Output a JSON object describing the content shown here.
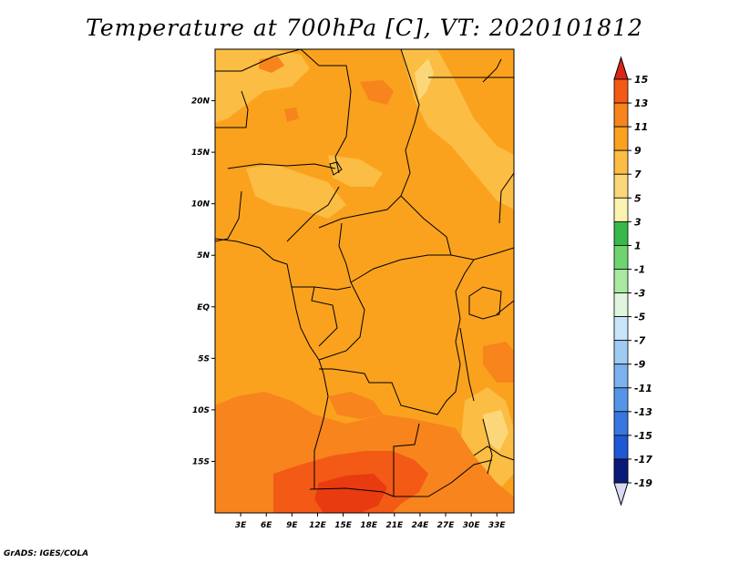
{
  "title": "Temperature at 700hPa [C], VT: 2020101812",
  "credit": "GrADS: IGES/COLA",
  "map": {
    "lon_range": [
      0,
      35
    ],
    "lat_range": [
      -20,
      25
    ],
    "lat_ticks": [
      {
        "value": 20,
        "label": "20N"
      },
      {
        "value": 15,
        "label": "15N"
      },
      {
        "value": 10,
        "label": "10N"
      },
      {
        "value": 5,
        "label": "5N"
      },
      {
        "value": 0,
        "label": "EQ"
      },
      {
        "value": -5,
        "label": "5S"
      },
      {
        "value": -10,
        "label": "10S"
      },
      {
        "value": -15,
        "label": "15S"
      }
    ],
    "lon_ticks": [
      {
        "value": 3,
        "label": "3E"
      },
      {
        "value": 6,
        "label": "6E"
      },
      {
        "value": 9,
        "label": "9E"
      },
      {
        "value": 12,
        "label": "12E"
      },
      {
        "value": 15,
        "label": "15E"
      },
      {
        "value": 18,
        "label": "18E"
      },
      {
        "value": 21,
        "label": "21E"
      },
      {
        "value": 24,
        "label": "24E"
      },
      {
        "value": 27,
        "label": "27E"
      },
      {
        "value": 30,
        "label": "30E"
      },
      {
        "value": 33,
        "label": "33E"
      }
    ]
  },
  "colorbar": {
    "levels": [
      {
        "label": "15",
        "color": "#e83b10"
      },
      {
        "label": "13",
        "color": "#f25a16"
      },
      {
        "label": "11",
        "color": "#f7841c"
      },
      {
        "label": "9",
        "color": "#faa21e"
      },
      {
        "label": "7",
        "color": "#fbbd43"
      },
      {
        "label": "5",
        "color": "#fcd77a"
      },
      {
        "label": "3",
        "color": "#fdf3b0"
      },
      {
        "label": "1",
        "color": "#36b84a"
      },
      {
        "label": "-1",
        "color": "#6fd46f"
      },
      {
        "label": "-3",
        "color": "#a8e8a0"
      },
      {
        "label": "-5",
        "color": "#dff5dd"
      },
      {
        "label": "-7",
        "color": "#c8e4f8"
      },
      {
        "label": "-9",
        "color": "#9fcbf3"
      },
      {
        "label": "-11",
        "color": "#7ab1ee"
      },
      {
        "label": "-13",
        "color": "#5595e8"
      },
      {
        "label": "-15",
        "color": "#3877e0"
      },
      {
        "label": "-17",
        "color": "#1f58d4"
      },
      {
        "label": "-19",
        "color": "#0e33b0"
      }
    ],
    "top_color": "#d9271a",
    "bottom_color": "#d9d9f2",
    "end_color_top": "#0a1a78"
  }
}
